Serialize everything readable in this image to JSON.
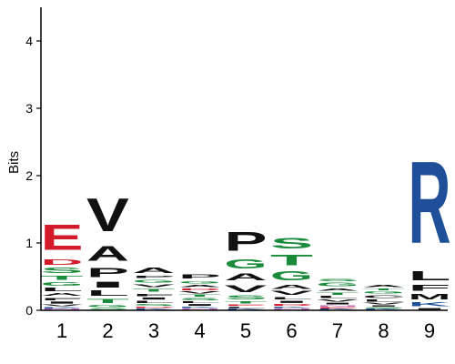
{
  "chart_data": {
    "type": "sequence-logo",
    "ylabel": "Bits",
    "ylim": [
      0,
      4.5
    ],
    "yticks": [
      "0",
      "1",
      "2",
      "3",
      "4"
    ],
    "colors": {
      "acidic": "#d21a2b",
      "hydrophobic": "#111111",
      "polar": "#1a8a3b",
      "basic": "#1f4f99",
      "amide": "#c266b3"
    },
    "positions": [
      {
        "label": "1",
        "letters": [
          {
            "char": "N",
            "bits": 0.02,
            "color": "#c266b3"
          },
          {
            "char": "K",
            "bits": 0.03,
            "color": "#1f4f99"
          },
          {
            "char": "V",
            "bits": 0.04,
            "color": "#111111"
          },
          {
            "char": "I",
            "bits": 0.05,
            "color": "#111111"
          },
          {
            "char": "F",
            "bits": 0.06,
            "color": "#111111"
          },
          {
            "char": "A",
            "bits": 0.07,
            "color": "#111111"
          },
          {
            "char": "L",
            "bits": 0.08,
            "color": "#111111"
          },
          {
            "char": "G",
            "bits": 0.08,
            "color": "#1a8a3b"
          },
          {
            "char": "T",
            "bits": 0.1,
            "color": "#1a8a3b"
          },
          {
            "char": "S",
            "bits": 0.12,
            "color": "#1a8a3b"
          },
          {
            "char": "D",
            "bits": 0.13,
            "color": "#d21a2b"
          },
          {
            "char": "E",
            "bits": 0.6,
            "color": "#d21a2b"
          }
        ]
      },
      {
        "label": "2",
        "letters": [
          {
            "char": "S",
            "bits": 0.04,
            "color": "#1a8a3b"
          },
          {
            "char": "G",
            "bits": 0.05,
            "color": "#1a8a3b"
          },
          {
            "char": "T",
            "bits": 0.1,
            "color": "#1a8a3b"
          },
          {
            "char": "L",
            "bits": 0.12,
            "color": "#111111"
          },
          {
            "char": "I",
            "bits": 0.14,
            "color": "#111111"
          },
          {
            "char": "P",
            "bits": 0.22,
            "color": "#111111"
          },
          {
            "char": "A",
            "bits": 0.35,
            "color": "#111111"
          },
          {
            "char": "V",
            "bits": 0.78,
            "color": "#111111"
          }
        ]
      },
      {
        "label": "3",
        "letters": [
          {
            "char": "K",
            "bits": 0.03,
            "color": "#1f4f99"
          },
          {
            "char": "D",
            "bits": 0.03,
            "color": "#d21a2b"
          },
          {
            "char": "S",
            "bits": 0.04,
            "color": "#1a8a3b"
          },
          {
            "char": "L",
            "bits": 0.05,
            "color": "#111111"
          },
          {
            "char": "I",
            "bits": 0.05,
            "color": "#111111"
          },
          {
            "char": "F",
            "bits": 0.06,
            "color": "#111111"
          },
          {
            "char": "T",
            "bits": 0.07,
            "color": "#1a8a3b"
          },
          {
            "char": "V",
            "bits": 0.07,
            "color": "#111111"
          },
          {
            "char": "G",
            "bits": 0.07,
            "color": "#1a8a3b"
          },
          {
            "char": "P",
            "bits": 0.06,
            "color": "#111111"
          },
          {
            "char": "A",
            "bits": 0.12,
            "color": "#111111"
          }
        ]
      },
      {
        "label": "4",
        "letters": [
          {
            "char": "N",
            "bits": 0.03,
            "color": "#c266b3"
          },
          {
            "char": "K",
            "bits": 0.03,
            "color": "#1f4f99"
          },
          {
            "char": "I",
            "bits": 0.04,
            "color": "#111111"
          },
          {
            "char": "L",
            "bits": 0.04,
            "color": "#111111"
          },
          {
            "char": "S",
            "bits": 0.05,
            "color": "#1a8a3b"
          },
          {
            "char": "T",
            "bits": 0.05,
            "color": "#1a8a3b"
          },
          {
            "char": "V",
            "bits": 0.05,
            "color": "#111111"
          },
          {
            "char": "D",
            "bits": 0.04,
            "color": "#d21a2b"
          },
          {
            "char": "A",
            "bits": 0.06,
            "color": "#111111"
          },
          {
            "char": "G",
            "bits": 0.06,
            "color": "#1a8a3b"
          },
          {
            "char": "P",
            "bits": 0.1,
            "color": "#111111"
          }
        ]
      },
      {
        "label": "5",
        "letters": [
          {
            "char": "K",
            "bits": 0.03,
            "color": "#1f4f99"
          },
          {
            "char": "L",
            "bits": 0.03,
            "color": "#111111"
          },
          {
            "char": "E",
            "bits": 0.03,
            "color": "#d21a2b"
          },
          {
            "char": "T",
            "bits": 0.05,
            "color": "#1a8a3b"
          },
          {
            "char": "S",
            "bits": 0.1,
            "color": "#1a8a3b"
          },
          {
            "char": "V",
            "bits": 0.17,
            "color": "#111111"
          },
          {
            "char": "A",
            "bits": 0.17,
            "color": "#111111"
          },
          {
            "char": "G",
            "bits": 0.22,
            "color": "#1a8a3b"
          },
          {
            "char": "P",
            "bits": 0.45,
            "color": "#111111"
          }
        ]
      },
      {
        "label": "6",
        "letters": [
          {
            "char": "N",
            "bits": 0.03,
            "color": "#c266b3"
          },
          {
            "char": "K",
            "bits": 0.03,
            "color": "#1f4f99"
          },
          {
            "char": "D",
            "bits": 0.04,
            "color": "#d21a2b"
          },
          {
            "char": "I",
            "bits": 0.05,
            "color": "#111111"
          },
          {
            "char": "L",
            "bits": 0.06,
            "color": "#111111"
          },
          {
            "char": "V",
            "bits": 0.09,
            "color": "#111111"
          },
          {
            "char": "A",
            "bits": 0.1,
            "color": "#111111"
          },
          {
            "char": "G",
            "bits": 0.22,
            "color": "#1a8a3b"
          },
          {
            "char": "T",
            "bits": 0.25,
            "color": "#1a8a3b"
          },
          {
            "char": "S",
            "bits": 0.25,
            "color": "#1a8a3b"
          }
        ]
      },
      {
        "label": "7",
        "letters": [
          {
            "char": "K",
            "bits": 0.02,
            "color": "#1f4f99"
          },
          {
            "char": "E",
            "bits": 0.03,
            "color": "#d21a2b"
          },
          {
            "char": "N",
            "bits": 0.03,
            "color": "#c266b3"
          },
          {
            "char": "I",
            "bits": 0.04,
            "color": "#111111"
          },
          {
            "char": "V",
            "bits": 0.05,
            "color": "#111111"
          },
          {
            "char": "L",
            "bits": 0.05,
            "color": "#111111"
          },
          {
            "char": "T",
            "bits": 0.06,
            "color": "#1a8a3b"
          },
          {
            "char": "A",
            "bits": 0.06,
            "color": "#111111"
          },
          {
            "char": "G",
            "bits": 0.08,
            "color": "#1a8a3b"
          },
          {
            "char": "S",
            "bits": 0.06,
            "color": "#1a8a3b"
          }
        ]
      },
      {
        "label": "8",
        "letters": [
          {
            "char": "K",
            "bits": 0.02,
            "color": "#1f4f99"
          },
          {
            "char": "S",
            "bits": 0.03,
            "color": "#1a8a3b"
          },
          {
            "char": "I",
            "bits": 0.03,
            "color": "#111111"
          },
          {
            "char": "V",
            "bits": 0.04,
            "color": "#111111"
          },
          {
            "char": "L",
            "bits": 0.05,
            "color": "#111111"
          },
          {
            "char": "C",
            "bits": 0.07,
            "color": "#111111"
          },
          {
            "char": "G",
            "bits": 0.05,
            "color": "#1a8a3b"
          },
          {
            "char": "T",
            "bits": 0.04,
            "color": "#1a8a3b"
          },
          {
            "char": "A",
            "bits": 0.06,
            "color": "#111111"
          }
        ]
      },
      {
        "label": "9",
        "letters": [
          {
            "char": "I",
            "bits": 0.04,
            "color": "#111111"
          },
          {
            "char": "K",
            "bits": 0.1,
            "color": "#1f4f99"
          },
          {
            "char": "M",
            "bits": 0.12,
            "color": "#111111"
          },
          {
            "char": "F",
            "bits": 0.14,
            "color": "#111111"
          },
          {
            "char": "L",
            "bits": 0.22,
            "color": "#111111"
          },
          {
            "char": "R",
            "bits": 1.95,
            "color": "#1f4f99"
          }
        ]
      }
    ]
  }
}
